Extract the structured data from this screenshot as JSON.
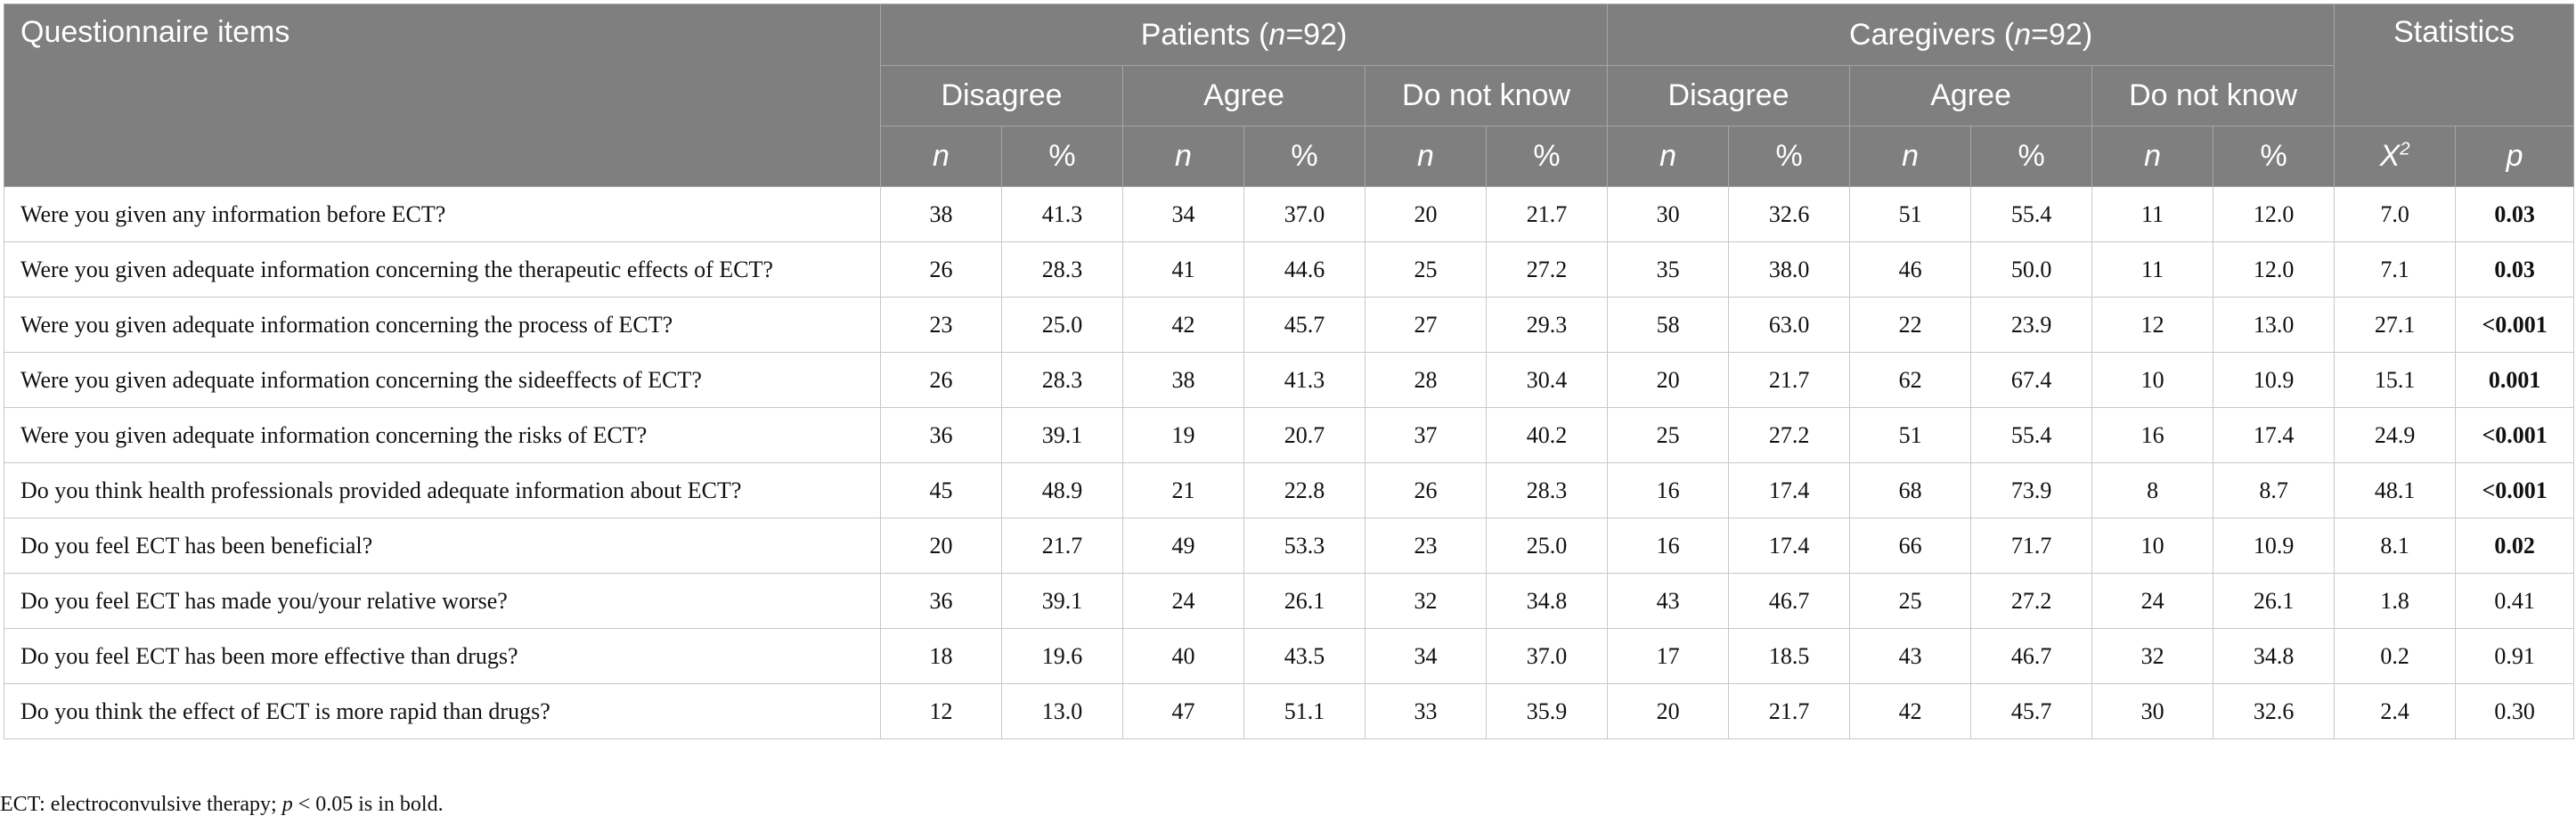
{
  "header": {
    "items_label": "Questionnaire items",
    "patients_label": "Patients",
    "patients_n": "(n=92)",
    "caregivers_label": "Caregivers",
    "caregivers_n": "(n=92)",
    "statistics_label": "Statistics",
    "disagree": "Disagree",
    "agree": "Agree",
    "dont_know": "Do not know",
    "n": "n",
    "pct": "%",
    "chi": "X",
    "chi_sup": "2",
    "p": "p"
  },
  "rows": [
    {
      "q": "Were you given any information before ECT?",
      "v": [
        "38",
        "41.3",
        "34",
        "37.0",
        "20",
        "21.7",
        "30",
        "32.6",
        "51",
        "55.4",
        "11",
        "12.0",
        "7.0",
        "0.03"
      ],
      "sig": true
    },
    {
      "q": "Were you given adequate information concerning the therapeutic effects of ECT?",
      "v": [
        "26",
        "28.3",
        "41",
        "44.6",
        "25",
        "27.2",
        "35",
        "38.0",
        "46",
        "50.0",
        "11",
        "12.0",
        "7.1",
        "0.03"
      ],
      "sig": true
    },
    {
      "q": "Were you given adequate information concerning the process of ECT?",
      "v": [
        "23",
        "25.0",
        "42",
        "45.7",
        "27",
        "29.3",
        "58",
        "63.0",
        "22",
        "23.9",
        "12",
        "13.0",
        "27.1",
        "<0.001"
      ],
      "sig": true
    },
    {
      "q": "Were you given adequate information concerning the sideeffects of ECT?",
      "v": [
        "26",
        "28.3",
        "38",
        "41.3",
        "28",
        "30.4",
        "20",
        "21.7",
        "62",
        "67.4",
        "10",
        "10.9",
        "15.1",
        "0.001"
      ],
      "sig": true
    },
    {
      "q": "Were you given adequate information concerning the risks of ECT?",
      "v": [
        "36",
        "39.1",
        "19",
        "20.7",
        "37",
        "40.2",
        "25",
        "27.2",
        "51",
        "55.4",
        "16",
        "17.4",
        "24.9",
        "<0.001"
      ],
      "sig": true
    },
    {
      "q": "Do you think health professionals provided adequate information about ECT?",
      "v": [
        "45",
        "48.9",
        "21",
        "22.8",
        "26",
        "28.3",
        "16",
        "17.4",
        "68",
        "73.9",
        "8",
        "8.7",
        "48.1",
        "<0.001"
      ],
      "sig": true
    },
    {
      "q": "Do you feel ECT has been beneficial?",
      "v": [
        "20",
        "21.7",
        "49",
        "53.3",
        "23",
        "25.0",
        "16",
        "17.4",
        "66",
        "71.7",
        "10",
        "10.9",
        "8.1",
        "0.02"
      ],
      "sig": true
    },
    {
      "q": "Do you feel ECT has made you/your relative worse?",
      "v": [
        "36",
        "39.1",
        "24",
        "26.1",
        "32",
        "34.8",
        "43",
        "46.7",
        "25",
        "27.2",
        "24",
        "26.1",
        "1.8",
        "0.41"
      ],
      "sig": false
    },
    {
      "q": "Do you feel ECT has been more effective than drugs?",
      "v": [
        "18",
        "19.6",
        "40",
        "43.5",
        "34",
        "37.0",
        "17",
        "18.5",
        "43",
        "46.7",
        "32",
        "34.8",
        "0.2",
        "0.91"
      ],
      "sig": false
    },
    {
      "q": "Do you think the effect of ECT is more rapid than drugs?",
      "v": [
        "12",
        "13.0",
        "47",
        "51.1",
        "33",
        "35.9",
        "20",
        "21.7",
        "42",
        "45.7",
        "30",
        "32.6",
        "2.4",
        "0.30"
      ],
      "sig": false
    }
  ],
  "footnote": {
    "text1": "ECT: electroconvulsive therapy; ",
    "p": "p",
    "text2": " < 0.05 is in bold."
  }
}
